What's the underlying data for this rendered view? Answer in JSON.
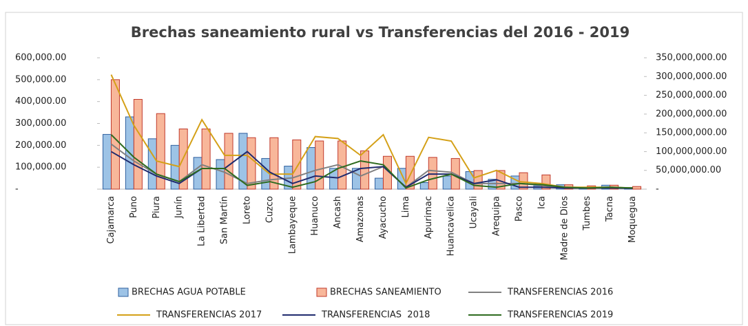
{
  "chart_data": {
    "type": "bar_line",
    "title": "Brechas saneamiento rural vs Transferencias del 2016 - 2019",
    "categories": [
      "Cajamarca",
      "Puno",
      "Piura",
      "Junín",
      "La Libertad",
      "San Martín",
      "Loreto",
      "Cuzco",
      "Lambayeque",
      "Huanuco",
      "Ancash",
      "Amazonas",
      "Ayacucho",
      "Lima",
      "Apurimac",
      "Huancavelica",
      "Ucayali",
      "Arequipa",
      "Pasco",
      "Ica",
      "Madre de Dios",
      "Tumbes",
      "Tacna",
      "Moquegua"
    ],
    "ylim": [
      0,
      600000
    ],
    "yticks": [
      {
        "value": 0,
        "label": "-"
      },
      {
        "value": 100000,
        "label": "100,000.00"
      },
      {
        "value": 200000,
        "label": "200,000.00"
      },
      {
        "value": 300000,
        "label": "300,000.00"
      },
      {
        "value": 400000,
        "label": "400,000.00"
      },
      {
        "value": 500000,
        "label": "500,000.00"
      },
      {
        "value": 600000,
        "label": "600,000.00"
      }
    ],
    "y2lim": [
      0,
      350000000
    ],
    "y2ticks": [
      {
        "value": 0,
        "label": "-"
      },
      {
        "value": 50000000,
        "label": "50,000,000.00"
      },
      {
        "value": 100000000,
        "label": "100,000,000.00"
      },
      {
        "value": 150000000,
        "label": "150,000,000.00"
      },
      {
        "value": 200000000,
        "label": "200,000,000.00"
      },
      {
        "value": 250000000,
        "label": "250,000,000.00"
      },
      {
        "value": 300000000,
        "label": "300,000,000.00"
      },
      {
        "value": 350000000,
        "label": "350,000,000.00"
      }
    ],
    "series": [
      {
        "name": "BRECHAS AGUA POTABLE",
        "kind": "bar",
        "color": "#9dc3e6",
        "values": [
          250000,
          330000,
          230000,
          200000,
          145000,
          135000,
          255000,
          140000,
          105000,
          190000,
          95000,
          95000,
          50000,
          95000,
          30000,
          60000,
          80000,
          45000,
          60000,
          15000,
          20000,
          8000,
          18000,
          8000
        ]
      },
      {
        "name": "BRECHAS SANEAMIENTO",
        "kind": "bar",
        "color": "#f8b79a",
        "values": [
          500000,
          410000,
          345000,
          275000,
          275000,
          255000,
          235000,
          235000,
          225000,
          220000,
          220000,
          175000,
          150000,
          150000,
          145000,
          140000,
          85000,
          85000,
          75000,
          65000,
          20000,
          15000,
          18000,
          12000
        ]
      },
      {
        "name": "TRANSFERENCIAS 2016",
        "kind": "line",
        "axis": "y2",
        "color": "#808080",
        "values": [
          120000000,
          75000000,
          40000000,
          20000000,
          65000000,
          45000000,
          15000000,
          25000000,
          30000000,
          50000000,
          65000000,
          35000000,
          60000000,
          5000000,
          50000000,
          45000000,
          15000000,
          15000000,
          15000000,
          10000000,
          3000000,
          3000000,
          5000000,
          3000000
        ]
      },
      {
        "name": "TRANSFERENCIAS 2017",
        "kind": "line",
        "axis": "y2",
        "color": "#d4a017",
        "values": [
          305000000,
          170000000,
          75000000,
          60000000,
          185000000,
          90000000,
          90000000,
          40000000,
          40000000,
          140000000,
          135000000,
          90000000,
          145000000,
          15000000,
          138000000,
          128000000,
          30000000,
          50000000,
          20000000,
          15000000,
          5000000,
          5000000,
          5000000,
          3000000
        ]
      },
      {
        "name": "TRANSFERENCIAS  2018",
        "kind": "line",
        "axis": "y2",
        "color": "#1f2a6e",
        "values": [
          100000000,
          65000000,
          35000000,
          15000000,
          55000000,
          55000000,
          100000000,
          45000000,
          15000000,
          35000000,
          30000000,
          55000000,
          60000000,
          5000000,
          40000000,
          40000000,
          15000000,
          25000000,
          5000000,
          5000000,
          3000000,
          3000000,
          3000000,
          2000000
        ]
      },
      {
        "name": "TRANSFERENCIAS 2019",
        "kind": "line",
        "axis": "y2",
        "color": "#2e6b1f",
        "values": [
          145000000,
          85000000,
          40000000,
          20000000,
          55000000,
          55000000,
          10000000,
          20000000,
          5000000,
          20000000,
          55000000,
          75000000,
          65000000,
          3000000,
          25000000,
          40000000,
          10000000,
          5000000,
          15000000,
          12000000,
          5000000,
          3000000,
          5000000,
          3000000
        ]
      }
    ]
  }
}
